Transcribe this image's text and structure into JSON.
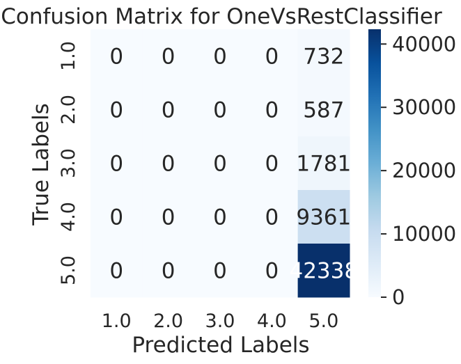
{
  "chart_data": {
    "type": "heatmap",
    "title": "Confusion Matrix for OneVsRestClassifier",
    "xlabel": "Predicted Labels",
    "ylabel": "True Labels",
    "x_categories": [
      "1.0",
      "2.0",
      "3.0",
      "4.0",
      "5.0"
    ],
    "y_categories": [
      "1.0",
      "2.0",
      "3.0",
      "4.0",
      "5.0"
    ],
    "values": [
      [
        0,
        0,
        0,
        0,
        732
      ],
      [
        0,
        0,
        0,
        0,
        587
      ],
      [
        0,
        0,
        0,
        0,
        1781
      ],
      [
        0,
        0,
        0,
        0,
        9361
      ],
      [
        0,
        0,
        0,
        0,
        42338
      ]
    ],
    "colormap": "Blues",
    "colorbar": {
      "min": 0,
      "max": 42338,
      "ticks": [
        0,
        10000,
        20000,
        30000,
        40000
      ],
      "tick_labels": [
        "0",
        "10000",
        "20000",
        "30000",
        "40000"
      ]
    },
    "colors": {
      "low": "#f7fbff",
      "high": "#08306b",
      "text_dark": "#262626",
      "text_light": "#ffffff"
    }
  }
}
